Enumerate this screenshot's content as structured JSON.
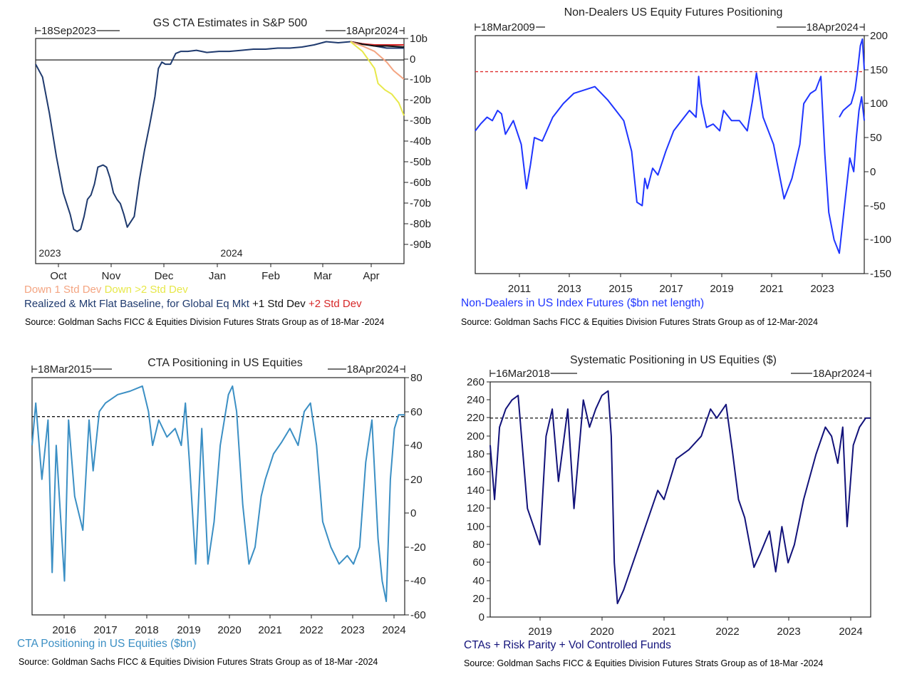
{
  "chart_data": [
    {
      "type": "line",
      "title": "GS CTA Estimates in S&P 500",
      "range_start_label": "18Sep2023",
      "range_end_label": "18Apr2024",
      "x_tick_labels": [
        "Oct",
        "Nov",
        "Dec",
        "Jan",
        "Feb",
        "Mar",
        "Apr"
      ],
      "x_year_labels": [
        "2023",
        "2024"
      ],
      "y_tick_labels": [
        "10b",
        "0",
        "-10b",
        "-20b",
        "-30b",
        "-40b",
        "-50b",
        "-60b",
        "-70b",
        "-80b",
        "-90b"
      ],
      "ylim": [
        -95,
        10
      ],
      "x_unit": "date",
      "xlim": [
        "2023-09-18",
        "2024-04-18"
      ],
      "legend": [
        {
          "text": "Down 1 Std Dev",
          "color": "#f4a582"
        },
        {
          "text": "Down >2 Std Dev",
          "color": "#e7e84a"
        },
        {
          "text": "Realized & Mkt Flat Baseline, for Global Eq  Mkt",
          "color": "#1f3a6e"
        },
        {
          "text": "+1 Std Dev",
          "color": "#111111"
        },
        {
          "text": "+2 Std Dev",
          "color": "#d62728"
        }
      ],
      "source": "Source: Goldman Sachs FICC & Equities Division Futures Strats Group as of 18-Mar -2024",
      "series": [
        {
          "name": "Realized & Mkt Flat Baseline, for Global Eq  Mkt",
          "color": "#1f3a6e",
          "x": [
            "2023-09-18",
            "2023-09-22",
            "2023-09-26",
            "2023-09-30",
            "2023-10-04",
            "2023-10-08",
            "2023-10-10",
            "2023-10-12",
            "2023-10-14",
            "2023-10-16",
            "2023-10-18",
            "2023-10-20",
            "2023-10-22",
            "2023-10-24",
            "2023-10-27",
            "2023-10-29",
            "2023-10-31",
            "2023-11-02",
            "2023-11-04",
            "2023-11-06",
            "2023-11-08",
            "2023-11-10",
            "2023-11-14",
            "2023-11-17",
            "2023-11-20",
            "2023-11-23",
            "2023-11-26",
            "2023-11-28",
            "2023-11-30",
            "2023-12-02",
            "2023-12-05",
            "2023-12-08",
            "2023-12-11",
            "2023-12-15",
            "2023-12-20",
            "2023-12-26",
            "2024-01-02",
            "2024-01-08",
            "2024-01-15",
            "2024-01-22",
            "2024-01-29",
            "2024-02-05",
            "2024-02-12",
            "2024-02-19",
            "2024-02-26",
            "2024-03-04",
            "2024-03-11",
            "2024-03-18",
            "2024-03-25",
            "2024-04-01",
            "2024-04-08",
            "2024-04-14",
            "2024-04-18"
          ],
          "y": [
            -2,
            -8,
            -25,
            -45,
            -62,
            -72,
            -79,
            -80,
            -79,
            -73,
            -65,
            -63,
            -58,
            -50,
            -49,
            -50,
            -55,
            -62,
            -65,
            -67,
            -72,
            -78,
            -73,
            -56,
            -42,
            -30,
            -17,
            -4,
            -1,
            -2,
            -2,
            3,
            4,
            4,
            4.5,
            3.5,
            4,
            4,
            4.5,
            5,
            5,
            5.5,
            5.5,
            6,
            7,
            8.5,
            8,
            8.5,
            7.5,
            6.5,
            5.5,
            5.5,
            5.5
          ]
        },
        {
          "name": "+2 Std Dev",
          "color": "#d62728",
          "x": [
            "2024-03-18",
            "2024-03-25",
            "2024-04-01",
            "2024-04-08",
            "2024-04-14",
            "2024-04-18"
          ],
          "y": [
            8.5,
            7.5,
            7,
            7,
            7,
            7
          ]
        },
        {
          "name": "+1 Std Dev",
          "color": "#111111",
          "x": [
            "2024-03-18",
            "2024-03-25",
            "2024-04-01",
            "2024-04-08",
            "2024-04-14",
            "2024-04-18"
          ],
          "y": [
            8.5,
            7.3,
            6.5,
            6.5,
            6.2,
            6
          ]
        },
        {
          "name": "Down 1 Std Dev",
          "color": "#f4a582",
          "x": [
            "2024-03-18",
            "2024-03-25",
            "2024-04-01",
            "2024-04-08",
            "2024-04-12",
            "2024-04-18"
          ],
          "y": [
            8.5,
            6.5,
            4,
            -1,
            -5,
            -9
          ]
        },
        {
          "name": "Down >2 Std Dev",
          "color": "#e7e84a",
          "x": [
            "2024-03-18",
            "2024-03-25",
            "2024-04-01",
            "2024-04-03",
            "2024-04-07",
            "2024-04-11",
            "2024-04-15",
            "2024-04-18"
          ],
          "y": [
            8.5,
            4,
            -4,
            -11,
            -14,
            -16,
            -20,
            -26
          ]
        }
      ]
    },
    {
      "type": "line",
      "title": "Non-Dealers US Equity Futures Positioning",
      "range_start_label": "18Mar2009",
      "range_end_label": "18Apr2024",
      "x_tick_labels": [
        "2011",
        "2013",
        "2015",
        "2017",
        "2019",
        "2021",
        "2023"
      ],
      "y_tick_labels": [
        "200",
        "150",
        "100",
        "50",
        "0",
        "-50",
        "-100",
        "-150"
      ],
      "ylim": [
        -150,
        200
      ],
      "xlim": [
        2009.55,
        2024.35
      ],
      "reference_line": {
        "value": 147,
        "color": "#e03030",
        "style": "dashed"
      },
      "legend": [
        {
          "text": "Non-Dealers in US Index Futures ($bn net length)",
          "color": "#1f35ff"
        }
      ],
      "source": "Source: Goldman Sachs FICC & Equities Division Futures Strats Group as of 12-Mar-2024",
      "series": [
        {
          "name": "Non-Dealers in US Index Futures ($bn net length)",
          "color": "#1f35ff",
          "x": [
            2009.55,
            2009.75,
            2010.0,
            2010.2,
            2010.4,
            2010.55,
            2010.7,
            2011.0,
            2011.3,
            2011.5,
            2011.65,
            2011.8,
            2012.1,
            2012.5,
            2012.9,
            2013.3,
            2013.7,
            2014.1,
            2014.6,
            2014.9,
            2015.2,
            2015.5,
            2015.7,
            2015.9,
            2016.0,
            2016.1,
            2016.3,
            2016.5,
            2016.8,
            2017.1,
            2017.4,
            2017.7,
            2017.95,
            2018.05,
            2018.15,
            2018.35,
            2018.6,
            2018.85,
            2019.0,
            2019.3,
            2019.6,
            2019.9,
            2020.1,
            2020.25,
            2020.5,
            2020.9,
            2021.3,
            2021.6,
            2021.9,
            2022.05,
            2022.3,
            2022.5,
            2022.7,
            2022.85,
            2023.0,
            2023.2,
            2023.4,
            2023.6,
            2023.8,
            2023.95,
            2024.05,
            2024.15,
            2024.25,
            2024.35
          ],
          "y": [
            60,
            70,
            80,
            75,
            90,
            85,
            55,
            75,
            40,
            -25,
            10,
            50,
            45,
            80,
            100,
            115,
            120,
            125,
            105,
            90,
            75,
            30,
            -45,
            -50,
            -10,
            -25,
            5,
            -5,
            30,
            60,
            75,
            90,
            80,
            140,
            100,
            65,
            70,
            60,
            90,
            75,
            75,
            60,
            105,
            145,
            80,
            40,
            -40,
            -10,
            40,
            100,
            115,
            120,
            140,
            25,
            -60,
            -100,
            -120,
            -50,
            20,
            0,
            50,
            90,
            110,
            75
          ]
        },
        {
          "name": "",
          "color": "#1f35ff",
          "x": [
            2023.4,
            2023.55,
            2023.7,
            2023.85,
            2024.0,
            2024.1,
            2024.2,
            2024.28,
            2024.35
          ],
          "y": [
            80,
            90,
            95,
            100,
            120,
            150,
            185,
            195,
            150
          ]
        }
      ]
    },
    {
      "type": "line",
      "title": "CTA Positioning in US Equities",
      "range_start_label": "18Mar2015",
      "range_end_label": "18Apr2024",
      "x_tick_labels": [
        "2016",
        "2017",
        "2018",
        "2019",
        "2020",
        "2021",
        "2022",
        "2023",
        "2024"
      ],
      "y_tick_labels": [
        "80",
        "60",
        "40",
        "20",
        "0",
        "-20",
        "-40",
        "-60"
      ],
      "ylim": [
        -60,
        80
      ],
      "xlim": [
        2015.21,
        2024.3
      ],
      "reference_line": {
        "value": 57,
        "color": "#111111",
        "style": "dashed"
      },
      "legend": [
        {
          "text": "CTA Positioning in US Equities ($bn)",
          "color": "#3b8fc4"
        }
      ],
      "source": "Source: Goldman Sachs FICC & Equities Division Futures Strats Group as of 18-Mar -2024",
      "series": [
        {
          "name": "CTA Positioning in US Equities ($bn)",
          "color": "#3b8fc4",
          "x": [
            2015.21,
            2015.3,
            2015.45,
            2015.6,
            2015.7,
            2015.8,
            2016.0,
            2016.1,
            2016.25,
            2016.45,
            2016.6,
            2016.7,
            2016.85,
            2017.0,
            2017.3,
            2017.6,
            2017.9,
            2018.05,
            2018.15,
            2018.3,
            2018.5,
            2018.7,
            2018.85,
            2018.95,
            2019.05,
            2019.2,
            2019.35,
            2019.5,
            2019.65,
            2019.8,
            2020.0,
            2020.1,
            2020.2,
            2020.35,
            2020.5,
            2020.65,
            2020.8,
            2020.9,
            2021.1,
            2021.3,
            2021.5,
            2021.7,
            2021.85,
            2022.0,
            2022.15,
            2022.3,
            2022.5,
            2022.7,
            2022.9,
            2023.05,
            2023.2,
            2023.35,
            2023.5,
            2023.65,
            2023.75,
            2023.85,
            2023.95,
            2024.05,
            2024.15,
            2024.3
          ],
          "y": [
            40,
            65,
            20,
            55,
            -35,
            40,
            -40,
            55,
            10,
            -10,
            55,
            25,
            60,
            65,
            70,
            72,
            75,
            60,
            40,
            55,
            45,
            50,
            40,
            65,
            30,
            -30,
            50,
            -30,
            -5,
            40,
            70,
            75,
            60,
            5,
            -30,
            -20,
            10,
            20,
            35,
            42,
            50,
            40,
            60,
            65,
            40,
            -5,
            -20,
            -30,
            -25,
            -30,
            -20,
            30,
            55,
            -15,
            -40,
            -52,
            20,
            50,
            58,
            58
          ]
        }
      ]
    },
    {
      "type": "line",
      "title": "Systematic Positioning in US Equities ($)",
      "range_start_label": "16Mar2018",
      "range_end_label": "18Apr2024",
      "x_tick_labels": [
        "2019",
        "2020",
        "2021",
        "2022",
        "2023",
        "2024"
      ],
      "y_tick_labels": [
        "260",
        "240",
        "220",
        "200",
        "180",
        "160",
        "140",
        "120",
        "100",
        "80",
        "60",
        "40",
        "20",
        "0"
      ],
      "ylim": [
        0,
        260
      ],
      "xlim": [
        2018.2,
        2024.33
      ],
      "reference_line": {
        "value": 220,
        "color": "#111111",
        "style": "dashed"
      },
      "legend": [
        {
          "text": "CTAs + Risk Parity + Vol Controlled Funds",
          "color": "#12127a"
        }
      ],
      "source": "Source: Goldman Sachs FICC & Equities Division Futures Strats Group as of 18-Mar -2024",
      "series": [
        {
          "name": "CTAs + Risk Parity + Vol Controlled Funds",
          "color": "#12127a",
          "x": [
            2018.2,
            2018.27,
            2018.35,
            2018.45,
            2018.55,
            2018.65,
            2018.8,
            2018.9,
            2019.0,
            2019.1,
            2019.2,
            2019.3,
            2019.45,
            2019.55,
            2019.7,
            2019.8,
            2019.9,
            2020.0,
            2020.1,
            2020.15,
            2020.2,
            2020.25,
            2020.35,
            2020.5,
            2020.7,
            2020.9,
            2021.0,
            2021.2,
            2021.4,
            2021.6,
            2021.75,
            2021.85,
            2022.0,
            2022.1,
            2022.2,
            2022.3,
            2022.45,
            2022.55,
            2022.7,
            2022.8,
            2022.9,
            2023.0,
            2023.1,
            2023.25,
            2023.45,
            2023.6,
            2023.7,
            2023.8,
            2023.88,
            2023.95,
            2024.05,
            2024.15,
            2024.25,
            2024.33
          ],
          "y": [
            190,
            130,
            210,
            230,
            240,
            245,
            120,
            100,
            80,
            200,
            230,
            150,
            230,
            120,
            240,
            210,
            230,
            245,
            250,
            200,
            60,
            15,
            30,
            60,
            100,
            140,
            130,
            175,
            185,
            200,
            230,
            220,
            235,
            185,
            130,
            110,
            55,
            70,
            95,
            50,
            100,
            60,
            80,
            130,
            180,
            210,
            200,
            170,
            210,
            100,
            190,
            210,
            220,
            220
          ]
        }
      ]
    }
  ]
}
